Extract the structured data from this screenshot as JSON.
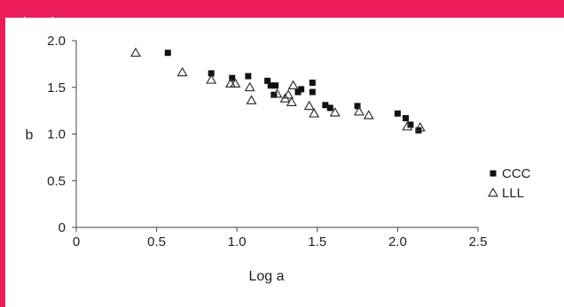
{
  "header": {
    "text": "nsic...ght"
  },
  "chart_data": {
    "type": "scatter",
    "xlabel": "Log a",
    "ylabel": "b",
    "xlim": [
      0,
      2.5
    ],
    "ylim": [
      0,
      2.0
    ],
    "xticks": [
      "0",
      "0.5",
      "1.0",
      "1.5",
      "2.0",
      "2.5"
    ],
    "yticks": [
      "0",
      "0.5",
      "1.0",
      "1.5",
      "2.0"
    ],
    "legend_position": "right",
    "grid": false,
    "series": [
      {
        "name": "CCC",
        "marker": "filled-square",
        "color": "#111111",
        "points": [
          [
            0.57,
            1.87
          ],
          [
            0.84,
            1.65
          ],
          [
            0.97,
            1.6
          ],
          [
            1.07,
            1.62
          ],
          [
            1.19,
            1.57
          ],
          [
            1.21,
            1.52
          ],
          [
            1.24,
            1.52
          ],
          [
            1.23,
            1.42
          ],
          [
            1.38,
            1.45
          ],
          [
            1.4,
            1.48
          ],
          [
            1.47,
            1.55
          ],
          [
            1.47,
            1.45
          ],
          [
            1.55,
            1.31
          ],
          [
            1.58,
            1.28
          ],
          [
            1.75,
            1.3
          ],
          [
            2.0,
            1.22
          ],
          [
            2.05,
            1.17
          ],
          [
            2.08,
            1.1
          ],
          [
            2.13,
            1.04
          ]
        ]
      },
      {
        "name": "LLL",
        "marker": "open-triangle",
        "color": "#333333",
        "points": [
          [
            0.37,
            1.87
          ],
          [
            0.66,
            1.66
          ],
          [
            0.84,
            1.58
          ],
          [
            0.96,
            1.54
          ],
          [
            0.99,
            1.54
          ],
          [
            1.08,
            1.5
          ],
          [
            1.09,
            1.36
          ],
          [
            1.25,
            1.43
          ],
          [
            1.3,
            1.38
          ],
          [
            1.32,
            1.42
          ],
          [
            1.34,
            1.34
          ],
          [
            1.35,
            1.52
          ],
          [
            1.45,
            1.3
          ],
          [
            1.48,
            1.22
          ],
          [
            1.61,
            1.23
          ],
          [
            1.76,
            1.24
          ],
          [
            1.82,
            1.2
          ],
          [
            2.06,
            1.08
          ],
          [
            2.14,
            1.07
          ]
        ]
      }
    ]
  }
}
